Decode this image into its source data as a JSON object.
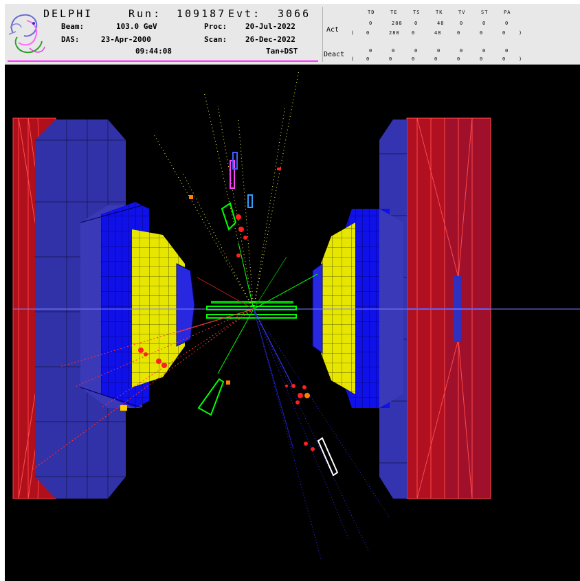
{
  "header": {
    "experiment": "DELPHI",
    "run_label": "Run:",
    "run": "109187",
    "evt_label": "Evt:",
    "evt": "3066",
    "beam_label": "Beam:",
    "beam": "103.0 GeV",
    "proc_label": "Proc:",
    "proc_date": "20-Jul-2022",
    "das_label": "DAS:",
    "das_date": "23-Apr-2000",
    "scan_label": "Scan:",
    "scan_date": "26-Dec-2022",
    "das_time": "09:44:08",
    "data_type": "Tan+DST"
  },
  "detectors": {
    "columns": [
      "TD",
      "TE",
      "TS",
      "TK",
      "TV",
      "ST",
      "PA"
    ],
    "act_label": "Act",
    "act_values": [
      "0",
      "288",
      "0",
      "48",
      "0",
      "0",
      "0"
    ],
    "act_paren": [
      "0",
      "288",
      "0",
      "48",
      "0",
      "0",
      "0"
    ],
    "deact_label": "Deact",
    "deact_values": [
      "0",
      "0",
      "0",
      "0",
      "0",
      "0",
      "0"
    ],
    "deact_paren": [
      "0",
      "0",
      "0",
      "0",
      "0",
      "0",
      "0"
    ]
  },
  "colors": {
    "background": "#000000",
    "panel": "#e8e8e8",
    "accent_line": "#ff33ff",
    "endcap_red": "#c01020",
    "barrel_blue": "#2020e0",
    "calorimeter_yellow": "#e6e600",
    "tracks_green": "#00ff00",
    "hits_red": "#ff2020"
  }
}
